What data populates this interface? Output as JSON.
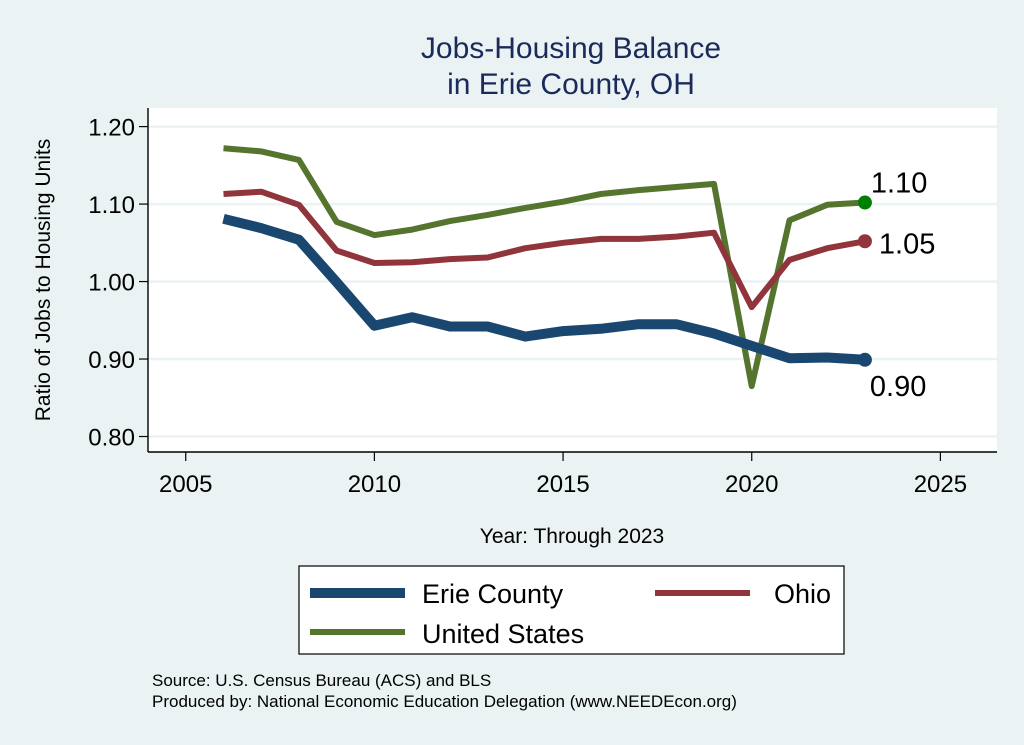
{
  "chart_data": {
    "type": "line",
    "title": [
      "Jobs-Housing Balance",
      "in Erie County, OH"
    ],
    "xlabel": "Year: Through 2023",
    "ylabel": "Ratio of Jobs to Housing Units",
    "xlim": [
      2004,
      2026.5
    ],
    "ylim": [
      0.78,
      1.224
    ],
    "xticks": [
      2005,
      2010,
      2015,
      2020,
      2025
    ],
    "xtick_labels": [
      "2005",
      "2010",
      "2015",
      "2020",
      "2025"
    ],
    "yticks": [
      0.8,
      0.9,
      1.0,
      1.1,
      1.2
    ],
    "ytick_labels": [
      "0.80",
      "0.90",
      "1.00",
      "1.10",
      "1.20"
    ],
    "grid": true,
    "x": [
      2006,
      2007,
      2008,
      2009,
      2010,
      2011,
      2012,
      2013,
      2014,
      2015,
      2016,
      2017,
      2018,
      2019,
      2020,
      2021,
      2022,
      2023
    ],
    "series": [
      {
        "name": "Erie County",
        "color": "#1a476f",
        "values": [
          1.081,
          1.069,
          1.054,
          0.999,
          0.943,
          0.954,
          0.942,
          0.942,
          0.929,
          0.936,
          0.939,
          0.945,
          0.945,
          0.933,
          0.917,
          0.901,
          0.902,
          0.899
        ],
        "end_label": "0.90"
      },
      {
        "name": "Ohio",
        "color": "#90353b",
        "values": [
          1.113,
          1.116,
          1.099,
          1.04,
          1.024,
          1.025,
          1.029,
          1.031,
          1.043,
          1.05,
          1.055,
          1.055,
          1.058,
          1.063,
          0.967,
          1.028,
          1.043,
          1.052
        ],
        "end_label": "1.05"
      },
      {
        "name": "United States",
        "color": "#55752f",
        "values": [
          1.172,
          1.168,
          1.157,
          1.077,
          1.06,
          1.067,
          1.078,
          1.086,
          1.095,
          1.103,
          1.113,
          1.118,
          1.122,
          1.126,
          0.865,
          1.079,
          1.099,
          1.102
        ],
        "end_label": "1.10",
        "marker_color": "#008000"
      }
    ],
    "legend": {
      "position": "bottom",
      "entries": [
        "Erie County",
        "Ohio",
        "United States"
      ]
    },
    "notes": [
      "Source: U.S. Census Bureau (ACS) and BLS",
      "Produced by: National Economic Education Delegation (www.NEEDEcon.org)"
    ]
  }
}
